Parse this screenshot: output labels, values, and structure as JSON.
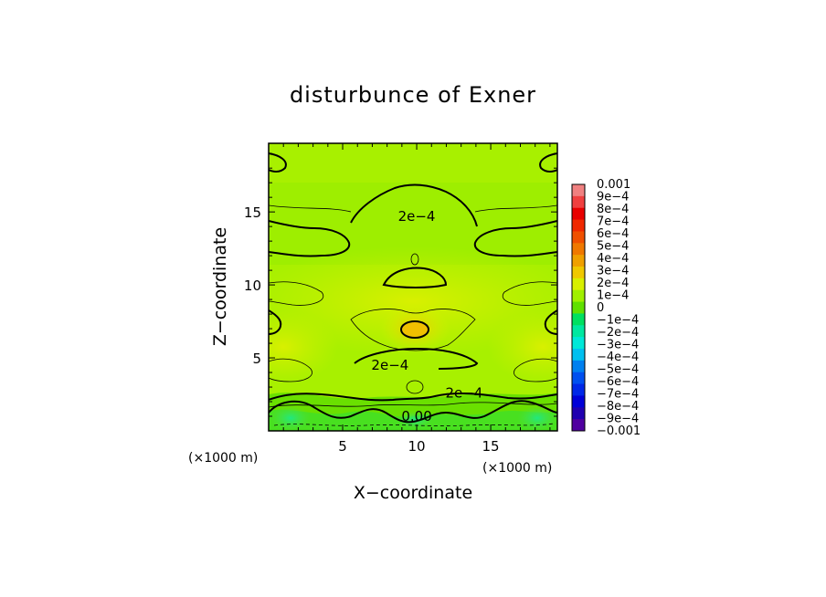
{
  "chart_data": {
    "type": "heatmap",
    "title": "disturbunce of Exner",
    "xlabel": "X−coordinate",
    "ylabel": "Z−coordinate",
    "x_unit": "(×1000 m)",
    "y_unit": "(×1000 m)",
    "xlim": [
      0,
      19.5
    ],
    "ylim": [
      0,
      19.7
    ],
    "xticks": [
      5,
      10,
      15
    ],
    "yticks": [
      5,
      10,
      15
    ],
    "xtick_labels": [
      "5",
      "10",
      "15"
    ],
    "ytick_labels": [
      "5",
      "10",
      "15"
    ],
    "colorbar": {
      "labels": [
        "0.001",
        "9e−4",
        "8e−4",
        "7e−4",
        "6e−4",
        "5e−4",
        "4e−4",
        "3e−4",
        "2e−4",
        "1e−4",
        "0",
        "−1e−4",
        "−2e−4",
        "−3e−4",
        "−4e−4",
        "−5e−4",
        "−6e−4",
        "−7e−4",
        "−8e−4",
        "−9e−4",
        "−0.001"
      ],
      "colors": [
        "#f08080",
        "#f04040",
        "#e80000",
        "#f02800",
        "#f05000",
        "#f07800",
        "#f0a000",
        "#f0c800",
        "#d8f000",
        "#a0f000",
        "#60e000",
        "#00e060",
        "#00e8a0",
        "#00e8d8",
        "#00c0f0",
        "#0080f0",
        "#0050f0",
        "#0028e8",
        "#0000d8",
        "#2000b0",
        "#5000a0"
      ]
    },
    "contour_labels": [
      {
        "text": "2e−4",
        "x": 10.0,
        "z": 14.7
      },
      {
        "text": "2e−4",
        "x": 8.2,
        "z": 4.5
      },
      {
        "text": "2e−4",
        "x": 13.2,
        "z": 2.6
      },
      {
        "text": "0.00",
        "x": 10.0,
        "z": 1.0
      }
    ]
  }
}
